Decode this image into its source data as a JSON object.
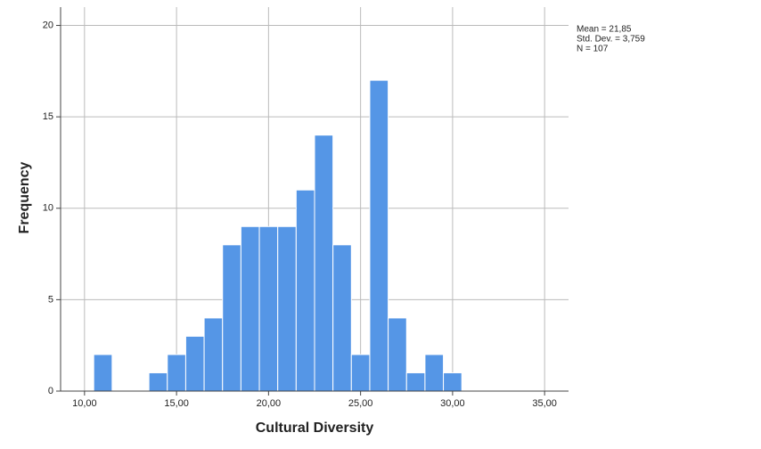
{
  "chart_data": {
    "type": "histogram",
    "x_label": "Cultural Diversity",
    "y_label": "Frequency",
    "annotations": [
      "Mean = 21,85",
      "Std. Dev. = 3,759",
      "N = 107"
    ],
    "bins": [
      10.5,
      11.5,
      12.5,
      13.5,
      14.5,
      15.5,
      16.5,
      17.5,
      18.5,
      19.5,
      20.5,
      21.5,
      22.5,
      23.5,
      24.5,
      25.5,
      26.5,
      27.5,
      28.5,
      29.5,
      30.5
    ],
    "values": [
      2,
      0,
      0,
      1,
      2,
      3,
      4,
      8,
      9,
      9,
      9,
      11,
      14,
      8,
      2,
      17,
      4,
      1,
      2,
      1
    ],
    "color": "#5596e6",
    "xlim": [
      8.7,
      36.3
    ],
    "xticks": [
      {
        "value": 10,
        "label": "10,00"
      },
      {
        "value": 15,
        "label": "15,00"
      },
      {
        "value": 20,
        "label": "20,00"
      },
      {
        "value": 25,
        "label": "25,00"
      },
      {
        "value": 30,
        "label": "30,00"
      },
      {
        "value": 35,
        "label": "35,00"
      }
    ],
    "ylim": [
      0,
      21
    ],
    "yticks": [
      0,
      5,
      10,
      15,
      20
    ],
    "grid": true
  }
}
